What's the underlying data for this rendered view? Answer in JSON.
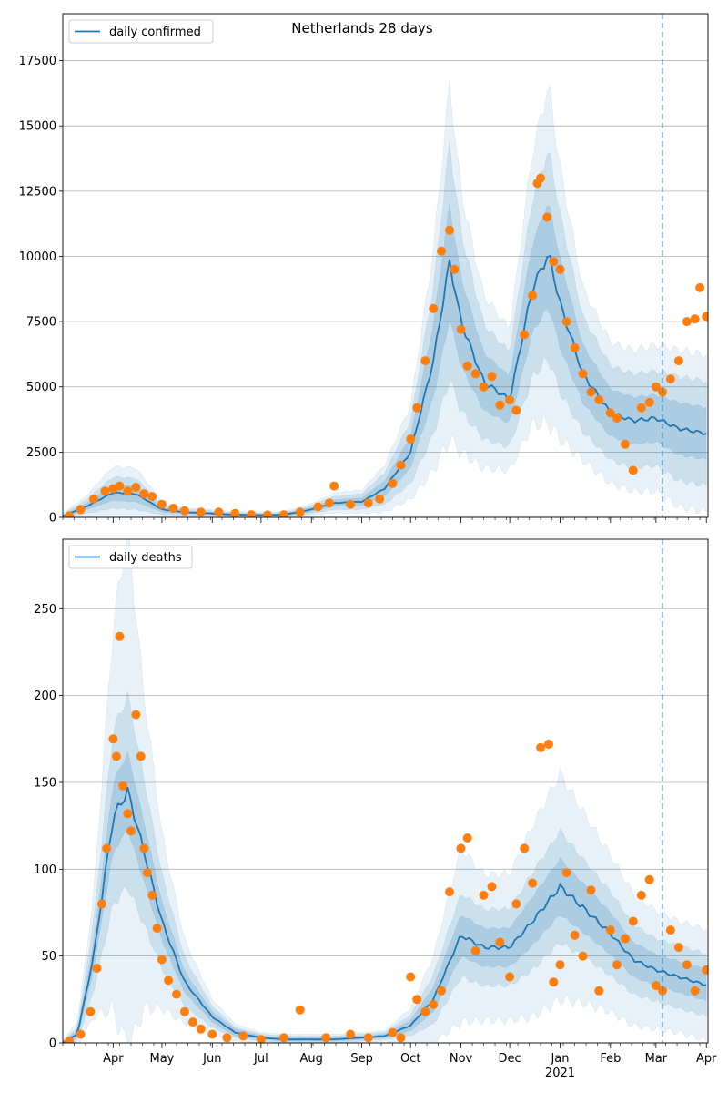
{
  "figure_title": "Netherlands 28 days",
  "colors": {
    "line": "#1f77b4",
    "observed": "#ff7f0e",
    "band": "#1f77b4",
    "grid": "#b0b0b0",
    "forecast_marker": "#1f77b4"
  },
  "x_axis": {
    "month_labels": [
      "Apr",
      "May",
      "Jun",
      "Jul",
      "Aug",
      "Sep",
      "Oct",
      "Nov",
      "Dec",
      "Jan",
      "Feb",
      "Mar",
      "Apr"
    ],
    "year_label": "2021",
    "year_under": "Jan",
    "range": [
      "2020-03-01",
      "2021-04-02"
    ]
  },
  "forecast_start": "2021-03-05",
  "chart_data": [
    {
      "type": "line",
      "title": "Netherlands 28 days",
      "legend": "daily confirmed",
      "legend_position": "top-left",
      "ylim": [
        0,
        19300
      ],
      "yticks": [
        0,
        2500,
        5000,
        7500,
        10000,
        12500,
        15000,
        17500
      ],
      "grid": "horizontal",
      "x": [
        "2020-03-01",
        "2020-03-15",
        "2020-04-01",
        "2020-04-15",
        "2020-05-01",
        "2020-05-15",
        "2020-06-01",
        "2020-06-15",
        "2020-07-01",
        "2020-07-15",
        "2020-08-01",
        "2020-08-15",
        "2020-09-01",
        "2020-09-15",
        "2020-10-01",
        "2020-10-15",
        "2020-10-25",
        "2020-11-01",
        "2020-11-15",
        "2020-12-01",
        "2020-12-15",
        "2020-12-25",
        "2021-01-01",
        "2021-01-15",
        "2021-02-01",
        "2021-02-15",
        "2021-03-01",
        "2021-03-15",
        "2021-04-02"
      ],
      "series": [
        {
          "name": "daily confirmed",
          "values": [
            50,
            400,
            950,
            900,
            300,
            200,
            150,
            100,
            90,
            100,
            300,
            550,
            600,
            1100,
            2500,
            6000,
            9800,
            7500,
            5200,
            4500,
            8800,
            10100,
            8200,
            5500,
            4000,
            3700,
            3800,
            3400,
            3200
          ]
        }
      ],
      "uncertainty": {
        "inner_halfwidth": [
          30,
          120,
          300,
          300,
          100,
          60,
          50,
          40,
          40,
          40,
          80,
          120,
          150,
          300,
          600,
          1400,
          2200,
          1700,
          1100,
          900,
          1700,
          2000,
          1700,
          1100,
          900,
          900,
          900,
          1000,
          1000
        ],
        "mid_halfwidth": [
          60,
          250,
          600,
          600,
          200,
          120,
          100,
          80,
          80,
          80,
          150,
          250,
          300,
          600,
          1200,
          2800,
          4500,
          3400,
          2200,
          1800,
          3400,
          4000,
          3400,
          2200,
          1800,
          1800,
          1800,
          2000,
          2000
        ],
        "outer_halfwidth": [
          90,
          400,
          1000,
          1000,
          300,
          180,
          150,
          120,
          120,
          120,
          230,
          380,
          450,
          900,
          1800,
          4200,
          6800,
          5000,
          3300,
          2700,
          5200,
          6500,
          5200,
          3300,
          2700,
          2700,
          2800,
          3000,
          3000
        ]
      },
      "observed": {
        "x": [
          "2020-03-05",
          "2020-03-12",
          "2020-03-20",
          "2020-03-27",
          "2020-04-01",
          "2020-04-05",
          "2020-04-10",
          "2020-04-15",
          "2020-04-20",
          "2020-04-25",
          "2020-05-01",
          "2020-05-08",
          "2020-05-15",
          "2020-05-25",
          "2020-06-05",
          "2020-06-15",
          "2020-06-25",
          "2020-07-05",
          "2020-07-15",
          "2020-07-25",
          "2020-08-05",
          "2020-08-12",
          "2020-08-15",
          "2020-08-25",
          "2020-09-05",
          "2020-09-12",
          "2020-09-20",
          "2020-09-25",
          "2020-10-01",
          "2020-10-05",
          "2020-10-10",
          "2020-10-15",
          "2020-10-20",
          "2020-10-25",
          "2020-10-28",
          "2020-11-01",
          "2020-11-05",
          "2020-11-10",
          "2020-11-15",
          "2020-11-20",
          "2020-11-25",
          "2020-12-01",
          "2020-12-05",
          "2020-12-10",
          "2020-12-15",
          "2020-12-18",
          "2020-12-20",
          "2020-12-24",
          "2020-12-28",
          "2021-01-01",
          "2021-01-05",
          "2021-01-10",
          "2021-01-15",
          "2021-01-20",
          "2021-01-25",
          "2021-02-01",
          "2021-02-05",
          "2021-02-10",
          "2021-02-15",
          "2021-02-20",
          "2021-02-25",
          "2021-03-01",
          "2021-03-05",
          "2021-03-10",
          "2021-03-15",
          "2021-03-20",
          "2021-03-25",
          "2021-03-28",
          "2021-04-01"
        ],
        "y": [
          60,
          300,
          700,
          1000,
          1100,
          1200,
          1000,
          1150,
          900,
          800,
          500,
          350,
          250,
          200,
          200,
          150,
          100,
          90,
          100,
          200,
          400,
          550,
          1200,
          500,
          550,
          700,
          1300,
          2000,
          3000,
          4200,
          6000,
          8000,
          10200,
          11000,
          9500,
          7200,
          5800,
          5500,
          5000,
          5400,
          4300,
          4500,
          4100,
          7000,
          8500,
          12800,
          13000,
          11500,
          9800,
          9500,
          7500,
          6500,
          5500,
          4800,
          4500,
          4000,
          3800,
          2800,
          1800,
          4200,
          4400,
          5000,
          4800,
          5300,
          6000,
          7500,
          7600,
          8800,
          7700
        ]
      }
    },
    {
      "type": "line",
      "legend": "daily deaths",
      "legend_position": "top-left",
      "ylim": [
        0,
        290
      ],
      "yticks": [
        0,
        50,
        100,
        150,
        200,
        250
      ],
      "grid": "horizontal",
      "x": [
        "2020-03-01",
        "2020-03-10",
        "2020-03-20",
        "2020-04-01",
        "2020-04-10",
        "2020-04-20",
        "2020-05-01",
        "2020-05-15",
        "2020-06-01",
        "2020-06-15",
        "2020-07-01",
        "2020-07-15",
        "2020-08-01",
        "2020-08-15",
        "2020-09-01",
        "2020-09-15",
        "2020-10-01",
        "2020-10-15",
        "2020-11-01",
        "2020-11-15",
        "2020-12-01",
        "2020-12-15",
        "2021-01-01",
        "2021-01-15",
        "2021-02-01",
        "2021-02-15",
        "2021-03-01",
        "2021-03-15",
        "2021-04-02"
      ],
      "series": [
        {
          "name": "daily deaths",
          "values": [
            0,
            5,
            50,
            130,
            145,
            110,
            70,
            35,
            15,
            6,
            3,
            2,
            2,
            2,
            3,
            4,
            10,
            25,
            62,
            55,
            55,
            70,
            90,
            78,
            63,
            48,
            42,
            38,
            33
          ]
        }
      ],
      "uncertainty": {
        "inner_halfwidth": [
          1,
          2,
          8,
          20,
          22,
          17,
          11,
          6,
          3,
          2,
          1,
          1,
          1,
          1,
          1,
          1,
          3,
          7,
          12,
          11,
          11,
          14,
          16,
          14,
          12,
          10,
          9,
          9,
          9
        ],
        "mid_halfwidth": [
          1,
          4,
          20,
          50,
          55,
          42,
          27,
          14,
          6,
          3,
          2,
          2,
          2,
          2,
          2,
          2,
          6,
          14,
          24,
          22,
          22,
          28,
          32,
          28,
          24,
          20,
          18,
          18,
          18
        ],
        "outer_halfwidth": [
          2,
          7,
          35,
          110,
          150,
          90,
          50,
          24,
          10,
          5,
          3,
          3,
          3,
          3,
          3,
          3,
          10,
          25,
          50,
          42,
          42,
          55,
          65,
          55,
          45,
          38,
          34,
          32,
          32
        ]
      },
      "observed": {
        "x": [
          "2020-03-05",
          "2020-03-12",
          "2020-03-18",
          "2020-03-22",
          "2020-03-25",
          "2020-03-28",
          "2020-04-01",
          "2020-04-03",
          "2020-04-05",
          "2020-04-07",
          "2020-04-10",
          "2020-04-12",
          "2020-04-15",
          "2020-04-18",
          "2020-04-20",
          "2020-04-22",
          "2020-04-25",
          "2020-04-28",
          "2020-05-01",
          "2020-05-05",
          "2020-05-10",
          "2020-05-15",
          "2020-05-20",
          "2020-05-25",
          "2020-06-01",
          "2020-06-10",
          "2020-06-20",
          "2020-07-01",
          "2020-07-15",
          "2020-07-25",
          "2020-08-10",
          "2020-08-25",
          "2020-09-05",
          "2020-09-20",
          "2020-09-25",
          "2020-10-01",
          "2020-10-05",
          "2020-10-10",
          "2020-10-15",
          "2020-10-20",
          "2020-10-25",
          "2020-11-01",
          "2020-11-05",
          "2020-11-10",
          "2020-11-15",
          "2020-11-20",
          "2020-11-25",
          "2020-12-01",
          "2020-12-05",
          "2020-12-10",
          "2020-12-15",
          "2020-12-20",
          "2020-12-25",
          "2020-12-28",
          "2021-01-01",
          "2021-01-05",
          "2021-01-10",
          "2021-01-15",
          "2021-01-20",
          "2021-01-25",
          "2021-02-01",
          "2021-02-05",
          "2021-02-10",
          "2021-02-15",
          "2021-02-20",
          "2021-02-25",
          "2021-03-01",
          "2021-03-05",
          "2021-03-10",
          "2021-03-15",
          "2021-03-20",
          "2021-03-25",
          "2021-04-01"
        ],
        "y": [
          1,
          5,
          18,
          43,
          80,
          112,
          175,
          165,
          234,
          148,
          132,
          122,
          189,
          165,
          112,
          98,
          85,
          66,
          48,
          36,
          28,
          18,
          12,
          8,
          5,
          3,
          4,
          2,
          3,
          19,
          3,
          5,
          3,
          6,
          3,
          38,
          25,
          18,
          22,
          30,
          87,
          112,
          118,
          53,
          85,
          90,
          58,
          38,
          80,
          112,
          92,
          170,
          172,
          35,
          45,
          98,
          62,
          50,
          88,
          30,
          65,
          45,
          60,
          70,
          85,
          94,
          33,
          30,
          65,
          55,
          45,
          30,
          42
        ]
      }
    }
  ]
}
